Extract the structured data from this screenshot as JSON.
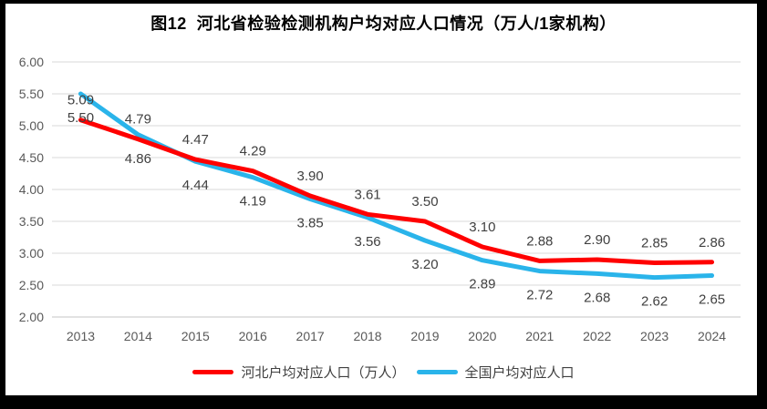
{
  "page": {
    "background": "#FFFFFF",
    "frame_color": "#000000"
  },
  "chart_data": {
    "type": "line",
    "title": "图12  河北省检验检测机构户均对应人口情况（万人/1家机构）",
    "categories": [
      "2013",
      "2014",
      "2015",
      "2016",
      "2017",
      "2018",
      "2019",
      "2020",
      "2021",
      "2022",
      "2023",
      "2024"
    ],
    "series": [
      {
        "name": "河北户均对应人口（万人）",
        "color": "#FF0000",
        "label_position": "above",
        "values": [
          5.09,
          4.79,
          4.47,
          4.29,
          3.9,
          3.61,
          3.5,
          3.1,
          2.88,
          2.9,
          2.85,
          2.86
        ]
      },
      {
        "name": "全国户均对应人口",
        "color": "#2AB4EA",
        "label_position": "below",
        "values": [
          5.5,
          4.86,
          4.44,
          4.19,
          3.85,
          3.56,
          3.2,
          2.89,
          2.72,
          2.68,
          2.62,
          2.65
        ]
      }
    ],
    "ylim": [
      2.0,
      6.0
    ],
    "ytick_step": 0.5,
    "yticks": [
      "6.00",
      "5.50",
      "5.00",
      "4.50",
      "4.00",
      "3.50",
      "3.00",
      "2.50",
      "2.00"
    ],
    "value_format": "0.00",
    "grid": true,
    "legend_position": "bottom",
    "colors": {
      "gridline": "#D9D9D9",
      "axis_line": "#C6C6C6",
      "axis_label": "#595959",
      "data_label": "#404040",
      "legend_text": "#404040"
    }
  }
}
